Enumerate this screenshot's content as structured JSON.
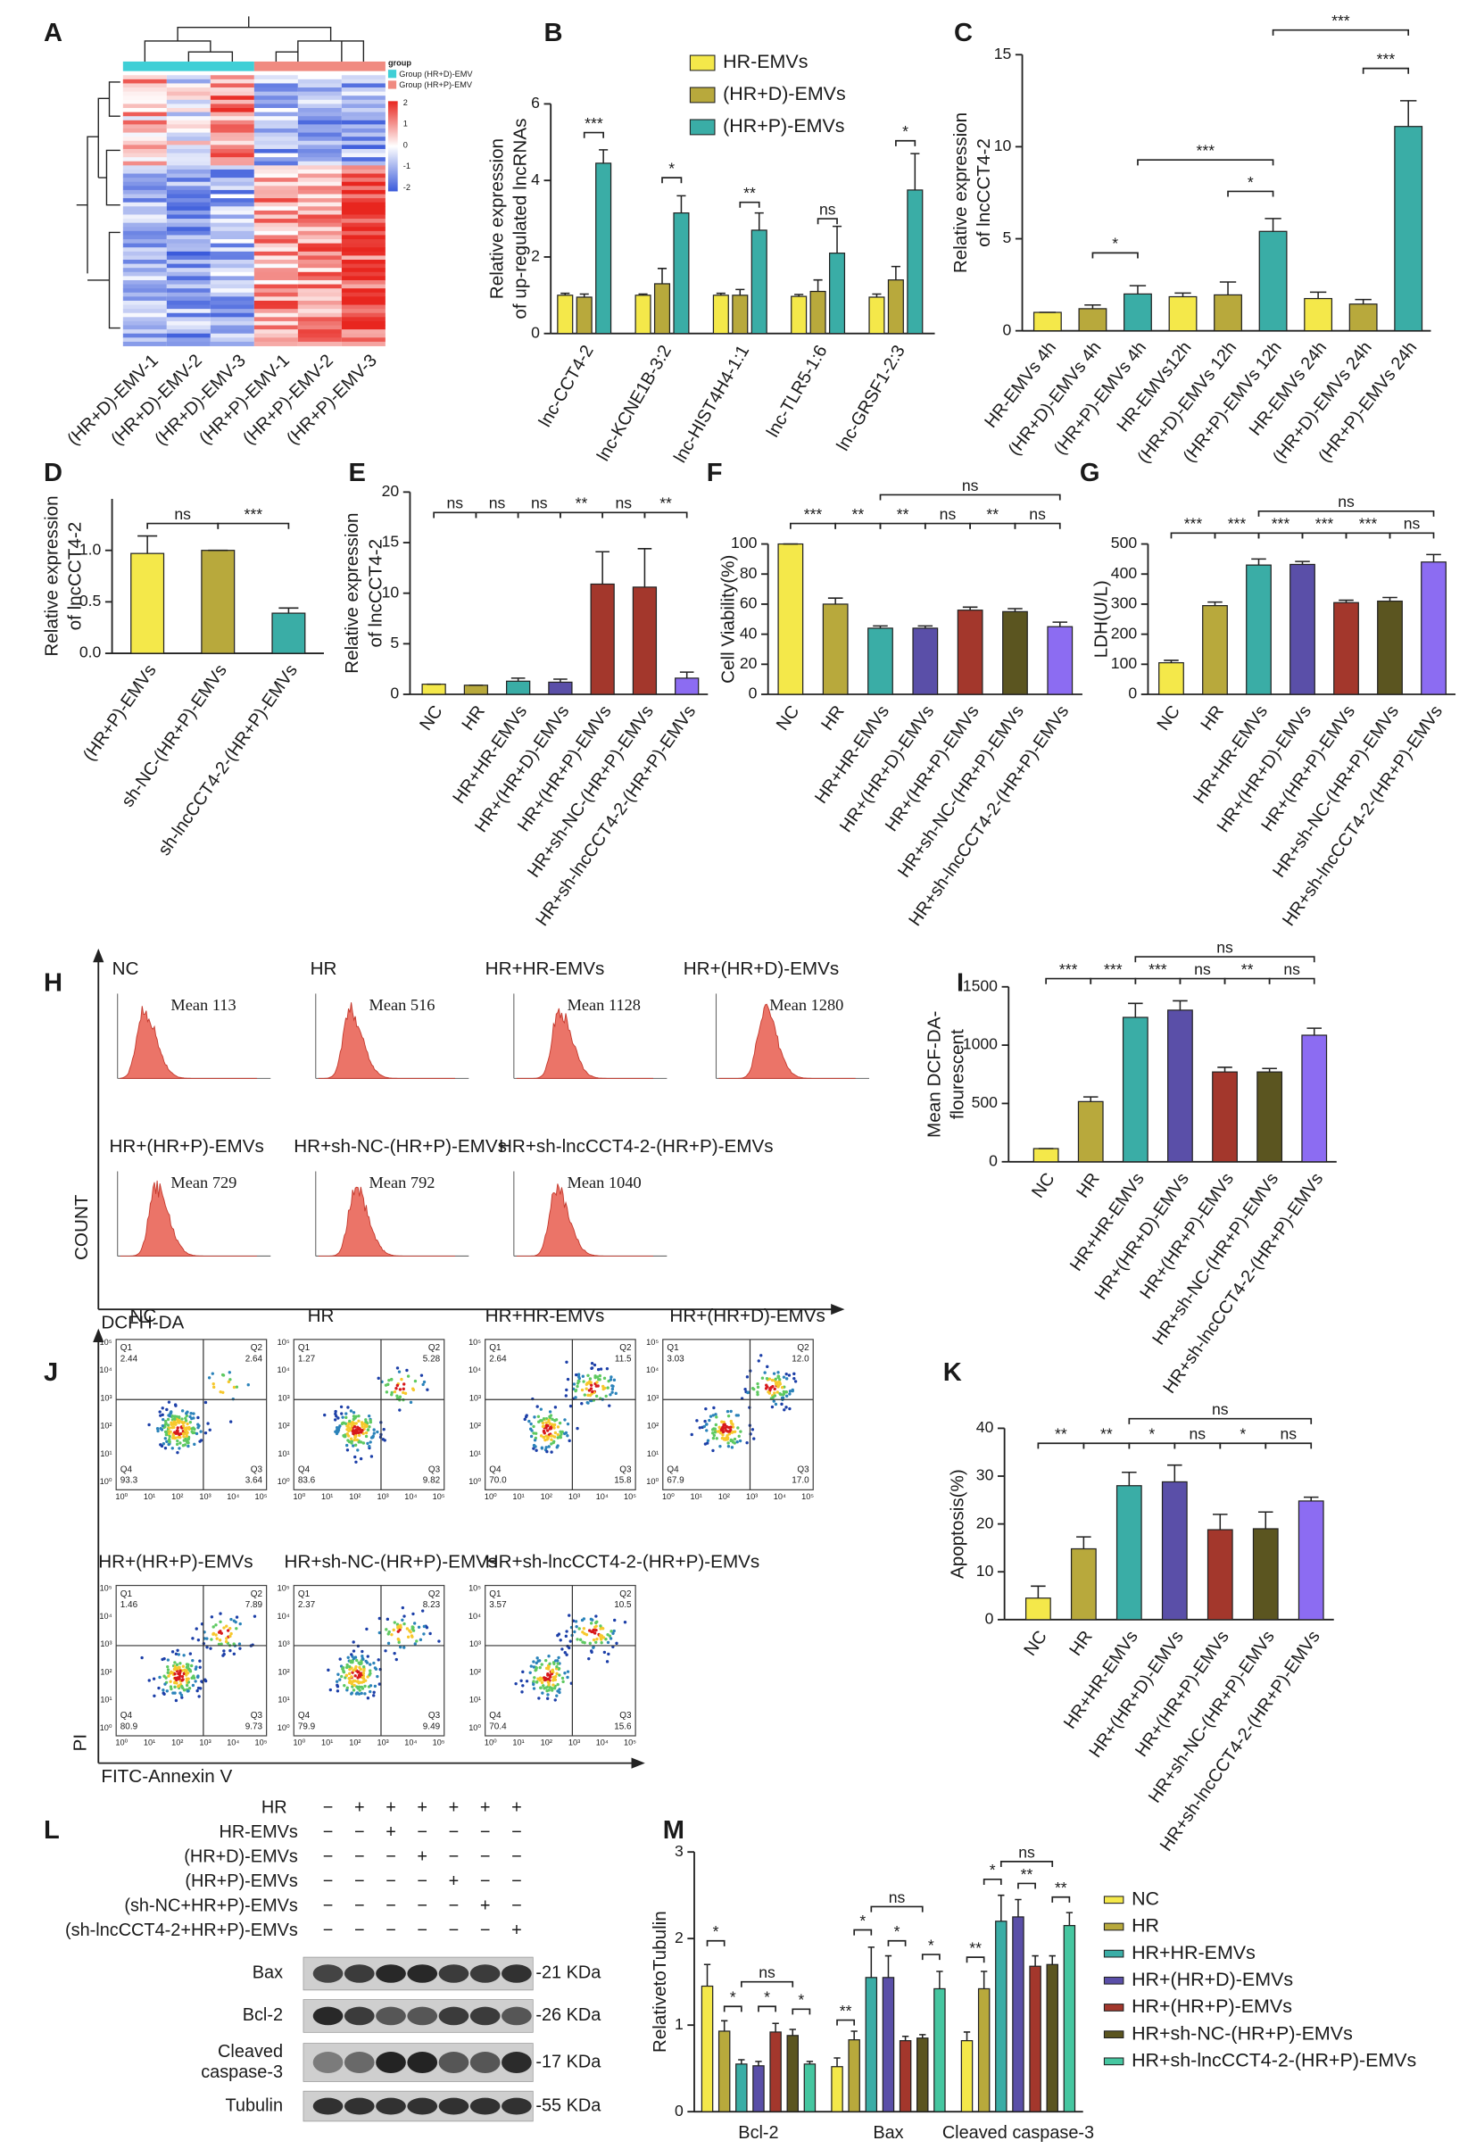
{
  "chart_data": [
    {
      "type": "bar",
      "panel_label": "B",
      "ylabel": [
        "Relative expression",
        "of up-regulated lncRNAs"
      ],
      "categories": [
        "lnc-CCT4-2",
        "lnc-KCNE1B-3:2",
        "lnc-HIST4H4-1:1",
        "lnc-TLR5-1:6",
        "lnc-GRSF1-2:3"
      ],
      "series": [
        {
          "name": "HR-EMVs",
          "color": "#f4e84a",
          "values": [
            1.0,
            1.0,
            1.0,
            0.97,
            0.95
          ],
          "errors": [
            0.05,
            0.03,
            0.05,
            0.05,
            0.08
          ]
        },
        {
          "name": "(HR+D)-EMVs",
          "color": "#b8a93c",
          "values": [
            0.95,
            1.3,
            1.0,
            1.1,
            1.4
          ],
          "errors": [
            0.08,
            0.4,
            0.15,
            0.3,
            0.35
          ]
        },
        {
          "name": "(HR+P)-EMVs",
          "color": "#3aada6",
          "values": [
            4.45,
            3.15,
            2.7,
            2.1,
            3.75
          ],
          "errors": [
            0.35,
            0.45,
            0.45,
            0.7,
            0.95
          ]
        }
      ],
      "ylim": [
        0,
        6
      ],
      "yticks": [
        0,
        2,
        4,
        6
      ],
      "annotations": [
        "***",
        "*",
        "**",
        "ns",
        "*"
      ]
    },
    {
      "type": "bar",
      "panel_label": "C",
      "ylabel": [
        "Relative expression",
        "of lncCCT4-2"
      ],
      "categories": [
        "HR-EMVs 4h",
        "(HR+D)-EMVs 4h",
        "(HR+P)-EMVs 4h",
        "HR-EMVs12h",
        "(HR+D)-EMVs 12h",
        "(HR+P)-EMVs 12h",
        "HR-EMVs 24h",
        "(HR+D)-EMVs 24h",
        "(HR+P)-EMVs 24h"
      ],
      "values": [
        1.0,
        1.2,
        2.0,
        1.85,
        1.95,
        5.4,
        1.75,
        1.45,
        11.1
      ],
      "errors": [
        0,
        0.2,
        0.45,
        0.2,
        0.7,
        0.7,
        0.35,
        0.25,
        1.4
      ],
      "colors": [
        "#f4e84a",
        "#b8a93c",
        "#3aada6",
        "#f4e84a",
        "#b8a93c",
        "#3aada6",
        "#f4e84a",
        "#b8a93c",
        "#3aada6"
      ],
      "ylim": [
        0,
        15
      ],
      "yticks": [
        0,
        5,
        10,
        15
      ],
      "annotations": [
        "*",
        "*",
        "***",
        "***",
        "***"
      ]
    },
    {
      "type": "bar",
      "panel_label": "D",
      "ylabel": [
        "Relative expression",
        "of lncCCT4-2"
      ],
      "categories": [
        "(HR+P)-EMVs",
        "sh-NC-(HR+P)-EMVs",
        "sh-lncCCT4-2-(HR+P)-EMVs"
      ],
      "values": [
        0.97,
        1.0,
        0.39
      ],
      "errors": [
        0.17,
        0,
        0.05
      ],
      "colors": [
        "#f4e84a",
        "#b8a93c",
        "#3aada6"
      ],
      "ylim": [
        0,
        1.5
      ],
      "yticks": [
        {
          "value": 0,
          "label": "0.0"
        },
        0.5,
        {
          "value": 1,
          "label": "1.0"
        }
      ],
      "annotations": [
        "ns",
        "***"
      ]
    },
    {
      "type": "bar",
      "panel_label": "E",
      "ylabel": [
        "Relative expression",
        "of lncCCT4-2"
      ],
      "categories": [
        "NC",
        "HR",
        "HR+HR-EMVs",
        "HR+(HR+D)-EMVs",
        "HR+(HR+P)-EMVs",
        "HR+sh-NC-(HR+P)-EMVs",
        "HR+sh-lncCCT4-2-(HR+P)-EMVs"
      ],
      "values": [
        1.0,
        0.9,
        1.3,
        1.2,
        10.9,
        10.6,
        1.6
      ],
      "errors": [
        0,
        0,
        0.3,
        0.3,
        3.2,
        3.8,
        0.6
      ],
      "colors": [
        "#f4e84a",
        "#b8a93c",
        "#3aada6",
        "#5a4fa8",
        "#a3372c",
        "#a3372c",
        "#8c6cf2"
      ],
      "ylim": [
        0,
        20
      ],
      "yticks": [
        0,
        5,
        10,
        15,
        20
      ],
      "annotations": [
        "ns",
        "ns",
        "ns",
        "**",
        "ns",
        "**"
      ]
    },
    {
      "type": "bar",
      "panel_label": "F",
      "ylabel": "Cell Viability(%)",
      "categories": [
        "NC",
        "HR",
        "HR+HR-EMVs",
        "HR+(HR+D)-EMVs",
        "HR+(HR+P)-EMVs",
        "HR+sh-NC-(HR+P)-EMVs",
        "HR+sh-lncCCT4-2-(HR+P)-EMVs"
      ],
      "values": [
        100,
        60,
        44,
        44,
        56,
        55,
        45
      ],
      "errors": [
        0,
        4,
        1.5,
        1.5,
        2,
        2,
        3
      ],
      "colors": [
        "#f4e84a",
        "#b8a93c",
        "#3aada6",
        "#5a4fa8",
        "#a3372c",
        "#5b5520",
        "#8c6cf2"
      ],
      "ylim": [
        0,
        100
      ],
      "yticks": [
        0,
        20,
        40,
        60,
        80,
        100
      ],
      "annotations": [
        "***",
        "**",
        "ns",
        "**",
        "ns",
        "**",
        "ns"
      ]
    },
    {
      "type": "bar",
      "panel_label": "G",
      "ylabel": "LDH(U/L)",
      "categories": [
        "NC",
        "HR",
        "HR+HR-EMVs",
        "HR+(HR+D)-EMVs",
        "HR+(HR+P)-EMVs",
        "HR+sh-NC-(HR+P)-EMVs",
        "HR+sh-lncCCT4-2-(HR+P)-EMVs"
      ],
      "values": [
        105,
        295,
        430,
        432,
        305,
        310,
        440
      ],
      "errors": [
        8,
        12,
        20,
        10,
        8,
        12,
        25
      ],
      "colors": [
        "#f4e84a",
        "#b8a93c",
        "#3aada6",
        "#5a4fa8",
        "#a3372c",
        "#5b5520",
        "#8c6cf2"
      ],
      "ylim": [
        0,
        500
      ],
      "yticks": [
        0,
        100,
        200,
        300,
        400,
        500
      ],
      "annotations": [
        "***",
        "***",
        "ns",
        "***",
        "***",
        "***",
        "ns"
      ]
    },
    {
      "type": "bar",
      "panel_label": "I",
      "ylabel": [
        "Mean DCF-DA-",
        "flourescent"
      ],
      "categories": [
        "NC",
        "HR",
        "HR+HR-EMVs",
        "HR+(HR+D)-EMVs",
        "HR+(HR+P)-EMVs",
        "HR+sh-NC-(HR+P)-EMVs",
        "HR+sh-lncCCT4-2-(HR+P)-EMVs"
      ],
      "values": [
        113,
        516,
        1238,
        1300,
        770,
        770,
        1085
      ],
      "errors": [
        0,
        40,
        120,
        80,
        40,
        30,
        60
      ],
      "colors": [
        "#f4e84a",
        "#b8a93c",
        "#3aada6",
        "#5a4fa8",
        "#a3372c",
        "#5b5520",
        "#8c6cf2"
      ],
      "ylim": [
        0,
        1500
      ],
      "yticks": [
        0,
        500,
        1000,
        1500
      ],
      "annotations": [
        "***",
        "***",
        "ns",
        "***",
        "ns",
        "**",
        "ns"
      ]
    },
    {
      "type": "bar",
      "panel_label": "K",
      "ylabel": "Apoptosis(%)",
      "categories": [
        "NC",
        "HR",
        "HR+HR-EMVs",
        "HR+(HR+D)-EMVs",
        "HR+(HR+P)-EMVs",
        "HR+sh-NC-(HR+P)-EMVs",
        "HR+sh-lncCCT4-2-(HR+P)-EMVs"
      ],
      "values": [
        4.5,
        14.8,
        28,
        28.8,
        18.8,
        19,
        24.8
      ],
      "errors": [
        2.5,
        2.5,
        2.8,
        3.5,
        3.2,
        3.5,
        0.8
      ],
      "colors": [
        "#f4e84a",
        "#b8a93c",
        "#3aada6",
        "#5a4fa8",
        "#a3372c",
        "#5b5520",
        "#8c6cf2"
      ],
      "ylim": [
        0,
        40
      ],
      "yticks": [
        0,
        10,
        20,
        30,
        40
      ],
      "annotations": [
        "**",
        "**",
        "ns",
        "*",
        "ns",
        "*",
        "ns"
      ]
    },
    {
      "type": "bar",
      "panel_label": "M",
      "ylabel": "RelativetoTubulin",
      "categories": [
        "Bcl-2",
        "Bax",
        "Cleaved caspase-3"
      ],
      "series": [
        {
          "name": "NC",
          "color": "#f4e84a",
          "values": [
            1.45,
            0.52,
            0.82
          ],
          "errors": [
            0.25,
            0.1,
            0.1
          ]
        },
        {
          "name": "HR",
          "color": "#b8a93c",
          "values": [
            0.93,
            0.83,
            1.42
          ],
          "errors": [
            0.12,
            0.1,
            0.2
          ]
        },
        {
          "name": "HR+HR-EMVs",
          "color": "#3aada6",
          "values": [
            0.55,
            1.55,
            2.2
          ],
          "errors": [
            0.05,
            0.35,
            0.3
          ]
        },
        {
          "name": "HR+(HR+D)-EMVs",
          "color": "#5a4fa8",
          "values": [
            0.53,
            1.55,
            2.25
          ],
          "errors": [
            0.05,
            0.25,
            0.2
          ]
        },
        {
          "name": "HR+(HR+P)-EMVs",
          "color": "#a3372c",
          "values": [
            0.92,
            0.82,
            1.68
          ],
          "errors": [
            0.1,
            0.05,
            0.12
          ]
        },
        {
          "name": "HR+sh-NC-(HR+P)-EMVs",
          "color": "#5b5520",
          "values": [
            0.88,
            0.85,
            1.7
          ],
          "errors": [
            0.07,
            0.04,
            0.1
          ]
        },
        {
          "name": "HR+sh-lncCCT4-2-(HR+P)-EMVs",
          "color": "#45c6a0",
          "values": [
            0.55,
            1.42,
            2.15
          ],
          "errors": [
            0.03,
            0.2,
            0.15
          ]
        }
      ],
      "ylim": [
        0,
        3
      ],
      "yticks": [
        0,
        1,
        2,
        3
      ],
      "annotations": [
        "*",
        "*",
        "*",
        "*",
        "ns",
        "**",
        "*",
        "*",
        "*",
        "ns",
        "**",
        "*",
        "**",
        "**",
        "ns"
      ]
    }
  ],
  "heatmap": {
    "panel_label": "A",
    "legend_title": "group",
    "groups": [
      "Group (HR+D)-EMV",
      "Group (HR+P)-EMV"
    ],
    "scale_labels": [
      "2",
      "1",
      "0",
      "-1",
      "-2"
    ],
    "columns": [
      "(HR+D)-EMV-1",
      "(HR+D)-EMV-2",
      "(HR+D)-EMV-3",
      "(HR+P)-EMV-1",
      "(HR+P)-EMV-2",
      "(HR+P)-EMV-3"
    ]
  },
  "flow_histograms": {
    "panel_label": "H",
    "y_axis": "COUNT",
    "x_axis": "DCFH-DA",
    "plots": [
      {
        "title": "NC",
        "mean": "Mean 113"
      },
      {
        "title": "HR",
        "mean": "Mean 516"
      },
      {
        "title": "HR+HR-EMVs",
        "mean": "Mean 1128"
      },
      {
        "title": "HR+(HR+D)-EMVs",
        "mean": "Mean 1280"
      },
      {
        "title": "HR+(HR+P)-EMVs",
        "mean": "Mean 729"
      },
      {
        "title": "HR+sh-NC-(HR+P)-EMVs",
        "mean": "Mean 792"
      },
      {
        "title": "HR+sh-lncCCT4-2-(HR+P)-EMVs",
        "mean": "Mean 1040"
      }
    ]
  },
  "flow_scatter": {
    "panel_label": "J",
    "y_axis": "PI",
    "x_axis": "FITC-Annexin V",
    "ticks": [
      "10⁰",
      "10¹",
      "10²",
      "10³",
      "10⁴",
      "10⁵"
    ],
    "plots": [
      {
        "title": "NC",
        "quadrants": [
          {
            "name": "Q1",
            "value": "2.44"
          },
          {
            "name": "Q2",
            "value": "2.64"
          },
          {
            "name": "Q4",
            "value": "93.3"
          },
          {
            "name": "Q3",
            "value": "3.64"
          }
        ]
      },
      {
        "title": "HR",
        "quadrants": [
          {
            "name": "Q1",
            "value": "1.27"
          },
          {
            "name": "Q2",
            "value": "5.28"
          },
          {
            "name": "Q4",
            "value": "83.6"
          },
          {
            "name": "Q3",
            "value": "9.82"
          }
        ]
      },
      {
        "title": "HR+HR-EMVs",
        "quadrants": [
          {
            "name": "Q1",
            "value": "2.64"
          },
          {
            "name": "Q2",
            "value": "11.5"
          },
          {
            "name": "Q4",
            "value": "70.0"
          },
          {
            "name": "Q3",
            "value": "15.8"
          }
        ]
      },
      {
        "title": "HR+(HR+D)-EMVs",
        "quadrants": [
          {
            "name": "Q1",
            "value": "3.03"
          },
          {
            "name": "Q2",
            "value": "12.0"
          },
          {
            "name": "Q4",
            "value": "67.9"
          },
          {
            "name": "Q3",
            "value": "17.0"
          }
        ]
      },
      {
        "title": "HR+(HR+P)-EMVs",
        "quadrants": [
          {
            "name": "Q1",
            "value": "1.46"
          },
          {
            "name": "Q2",
            "value": "7.89"
          },
          {
            "name": "Q4",
            "value": "80.9"
          },
          {
            "name": "Q3",
            "value": "9.73"
          }
        ]
      },
      {
        "title": "HR+sh-NC-(HR+P)-EMVs",
        "quadrants": [
          {
            "name": "Q1",
            "value": "2.37"
          },
          {
            "name": "Q2",
            "value": "8.23"
          },
          {
            "name": "Q4",
            "value": "79.9"
          },
          {
            "name": "Q3",
            "value": "9.49"
          }
        ]
      },
      {
        "title": "HR+sh-lncCCT4-2-(HR+P)-EMVs",
        "quadrants": [
          {
            "name": "Q1",
            "value": "3.57"
          },
          {
            "name": "Q2",
            "value": "10.5"
          },
          {
            "name": "Q4",
            "value": "70.4"
          },
          {
            "name": "Q3",
            "value": "15.6"
          }
        ]
      }
    ]
  },
  "western_blot": {
    "panel_label": "L",
    "conditions": [
      {
        "name": "HR",
        "signs": [
          "−",
          "+",
          "+",
          "+",
          "+",
          "+",
          "+"
        ]
      },
      {
        "name": "HR-EMVs",
        "signs": [
          "−",
          "−",
          "+",
          "−",
          "−",
          "−",
          "−"
        ]
      },
      {
        "name": "(HR+D)-EMVs",
        "signs": [
          "−",
          "−",
          "−",
          "+",
          "−",
          "−",
          "−"
        ]
      },
      {
        "name": "(HR+P)-EMVs",
        "signs": [
          "−",
          "−",
          "−",
          "−",
          "+",
          "−",
          "−"
        ]
      },
      {
        "name": "(sh-NC+HR+P)-EMVs",
        "signs": [
          "−",
          "−",
          "−",
          "−",
          "−",
          "+",
          "−"
        ]
      },
      {
        "name": "(sh-lncCCT4-2+HR+P)-EMVs",
        "signs": [
          "−",
          "−",
          "−",
          "−",
          "−",
          "−",
          "+"
        ]
      }
    ],
    "blots": [
      {
        "name": "Bax",
        "size": "-21 KDa"
      },
      {
        "name": "Bcl-2",
        "size": "-26 KDa"
      },
      {
        "name": [
          "Cleaved",
          "caspase-3"
        ],
        "size": "-17 KDa"
      },
      {
        "name": "Tubulin",
        "size": "-55 KDa"
      }
    ]
  }
}
